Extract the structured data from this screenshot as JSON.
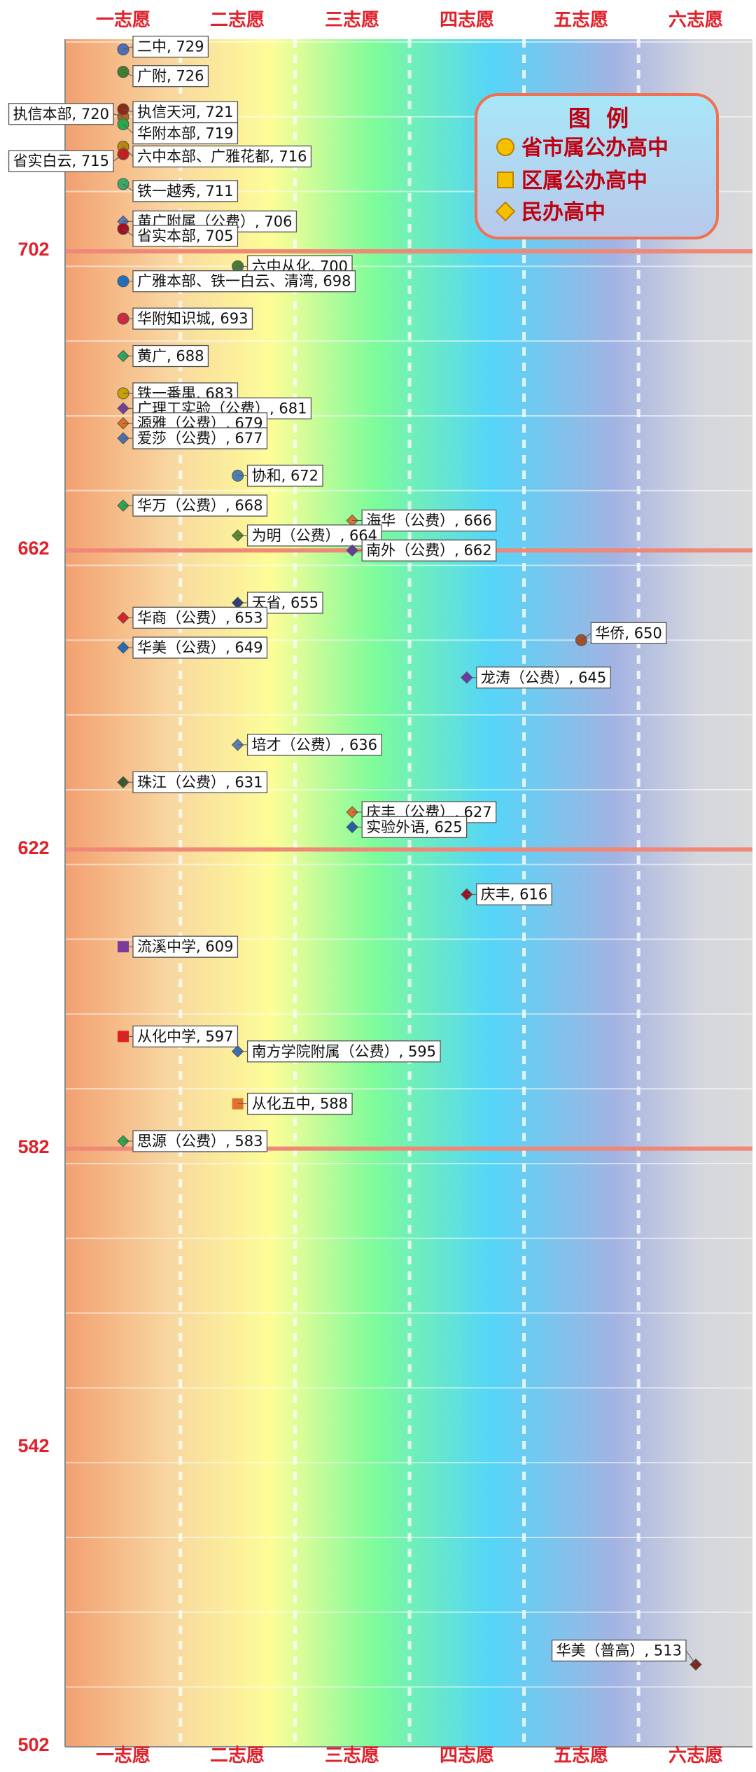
{
  "chart_data": {
    "type": "scatter",
    "x_categories": [
      "一志愿",
      "二志愿",
      "三志愿",
      "四志愿",
      "五志愿",
      "六志愿"
    ],
    "ylim": [
      502,
      735
    ],
    "y_ticks": [
      502,
      542,
      582,
      622,
      662,
      702
    ],
    "major_gridlines": [
      582,
      622,
      662,
      702,
      742
    ],
    "grid": true,
    "legend": {
      "title": "图  例",
      "placement": "top-right",
      "items": [
        {
          "label": "省市属公办高中",
          "marker": "circle",
          "color": "#f5c000"
        },
        {
          "label": "区属公办高中",
          "marker": "square",
          "color": "#f5c000"
        },
        {
          "label": "民办高中",
          "marker": "diamond",
          "color": "#f5c000"
        }
      ]
    },
    "points": [
      {
        "label": "二中, 729",
        "x": 1,
        "y": 729,
        "marker": "circle",
        "color": "#4a6fb5"
      },
      {
        "label": "广附, 726",
        "x": 1,
        "y": 726,
        "marker": "circle",
        "color": "#3f7f2f"
      },
      {
        "label": "执信本部, 720",
        "x": 1,
        "y": 720,
        "marker": "circle",
        "color": "#b5651d",
        "side": "left"
      },
      {
        "label": "执信天河, 721",
        "x": 1,
        "y": 721,
        "marker": "circle",
        "color": "#8b2a12"
      },
      {
        "label": "华附本部, 719",
        "x": 1,
        "y": 719,
        "marker": "circle",
        "color": "#2aa84a"
      },
      {
        "label": "六中本部、广雅花都, 716",
        "x": 1,
        "y": 716,
        "marker": "circle",
        "color": "#b8860b"
      },
      {
        "label": "省实白云, 715",
        "x": 1,
        "y": 715,
        "marker": "circle",
        "color": "#c81e1e",
        "side": "left"
      },
      {
        "label": "铁一越秀, 711",
        "x": 1,
        "y": 711,
        "marker": "circle",
        "color": "#3aa866"
      },
      {
        "label": "黄广附属（公费）, 706",
        "x": 1,
        "y": 706,
        "marker": "diamond",
        "color": "#5577bb"
      },
      {
        "label": "省实本部, 705",
        "x": 1,
        "y": 705,
        "marker": "circle",
        "color": "#a01020"
      },
      {
        "label": "六中从化, 700",
        "x": 2,
        "y": 700,
        "marker": "circle",
        "color": "#4a7a3a"
      },
      {
        "label": "广雅本部、铁一白云、清湾, 698",
        "x": 1,
        "y": 698,
        "marker": "circle",
        "color": "#1f6fc0"
      },
      {
        "label": "华附知识城, 693",
        "x": 1,
        "y": 693,
        "marker": "circle",
        "color": "#d0283c"
      },
      {
        "label": "黄广, 688",
        "x": 1,
        "y": 688,
        "marker": "diamond",
        "color": "#2ca85a"
      },
      {
        "label": "铁一番禺, 683",
        "x": 1,
        "y": 683,
        "marker": "circle",
        "color": "#c9a000"
      },
      {
        "label": "广理工实验（公费）, 681",
        "x": 1,
        "y": 681,
        "marker": "diamond",
        "color": "#7a3aa0"
      },
      {
        "label": "源雅（公费）, 679",
        "x": 1,
        "y": 679,
        "marker": "diamond",
        "color": "#e07020"
      },
      {
        "label": "爱莎（公费）, 677",
        "x": 1,
        "y": 677,
        "marker": "diamond",
        "color": "#4a6fb5"
      },
      {
        "label": "协和, 672",
        "x": 2,
        "y": 672,
        "marker": "circle",
        "color": "#4a7fb0"
      },
      {
        "label": "华万（公费）, 668",
        "x": 1,
        "y": 668,
        "marker": "diamond",
        "color": "#2aa84a"
      },
      {
        "label": "海华（公费）, 666",
        "x": 3,
        "y": 666,
        "marker": "diamond",
        "color": "#e07030"
      },
      {
        "label": "为明（公费）, 664",
        "x": 2,
        "y": 664,
        "marker": "diamond",
        "color": "#5a8a2a"
      },
      {
        "label": "南外（公费）, 662",
        "x": 3,
        "y": 662,
        "marker": "diamond",
        "color": "#6a3aa0"
      },
      {
        "label": "天省, 655",
        "x": 2,
        "y": 655,
        "marker": "diamond",
        "color": "#2a3f7a"
      },
      {
        "label": "华商（公费）, 653",
        "x": 1,
        "y": 653,
        "marker": "diamond",
        "color": "#e02020"
      },
      {
        "label": "华侨, 650",
        "x": 5,
        "y": 650,
        "marker": "circle",
        "color": "#a0502a"
      },
      {
        "label": "华美（公费）, 649",
        "x": 1,
        "y": 649,
        "marker": "diamond",
        "color": "#1f6fc0"
      },
      {
        "label": "龙涛（公费）, 645",
        "x": 4,
        "y": 645,
        "marker": "diamond",
        "color": "#6a3ab0"
      },
      {
        "label": "培才（公费）, 636",
        "x": 2,
        "y": 636,
        "marker": "diamond",
        "color": "#5a7fb5"
      },
      {
        "label": "珠江（公费）, 631",
        "x": 1,
        "y": 631,
        "marker": "diamond",
        "color": "#3a5a2a"
      },
      {
        "label": "庆丰（公费）, 627",
        "x": 3,
        "y": 627,
        "marker": "diamond",
        "color": "#e07030"
      },
      {
        "label": "实验外语, 625",
        "x": 3,
        "y": 625,
        "marker": "diamond",
        "color": "#1f5fb0"
      },
      {
        "label": "庆丰, 616",
        "x": 4,
        "y": 616,
        "marker": "diamond",
        "color": "#a01020"
      },
      {
        "label": "流溪中学, 609",
        "x": 1,
        "y": 609,
        "marker": "square",
        "color": "#7a3aa0"
      },
      {
        "label": "从化中学, 597",
        "x": 1,
        "y": 597,
        "marker": "square",
        "color": "#e02020"
      },
      {
        "label": "南方学院附属（公费）, 595",
        "x": 2,
        "y": 595,
        "marker": "diamond",
        "color": "#3a6fb5"
      },
      {
        "label": "从化五中, 588",
        "x": 2,
        "y": 588,
        "marker": "square",
        "color": "#e07030"
      },
      {
        "label": "思源（公费）, 583",
        "x": 1,
        "y": 583,
        "marker": "diamond",
        "color": "#2aa84a"
      },
      {
        "label": "华美（普高）, 513",
        "x": 6,
        "y": 513,
        "marker": "diamond",
        "color": "#7a2a1a",
        "side": "left"
      }
    ]
  }
}
